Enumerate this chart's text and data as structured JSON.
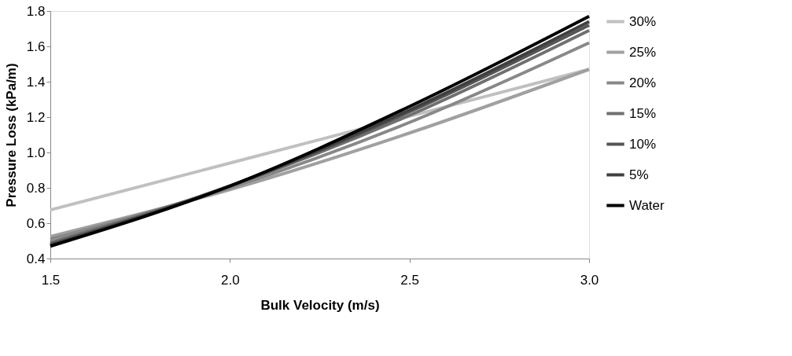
{
  "chart_data": {
    "type": "line",
    "xlabel": "Bulk Velocity (m/s)",
    "ylabel": "Pressure Loss (kPa/m)",
    "x": [
      1.5,
      2.0,
      2.5,
      3.0
    ],
    "series": [
      {
        "name": "30%",
        "color": "#c0c0c0",
        "values": [
          0.675,
          0.94,
          1.205,
          1.47
        ]
      },
      {
        "name": "25%",
        "color": "#a0a0a0",
        "values": [
          0.525,
          0.79,
          1.11,
          1.47
        ]
      },
      {
        "name": "20%",
        "color": "#888888",
        "values": [
          0.51,
          0.8,
          1.17,
          1.62
        ]
      },
      {
        "name": "15%",
        "color": "#707070",
        "values": [
          0.49,
          0.81,
          1.21,
          1.69
        ]
      },
      {
        "name": "10%",
        "color": "#555555",
        "values": [
          0.48,
          0.81,
          1.23,
          1.72
        ]
      },
      {
        "name": "5%",
        "color": "#404040",
        "values": [
          0.475,
          0.81,
          1.24,
          1.74
        ]
      },
      {
        "name": "Water",
        "color": "#000000",
        "values": [
          0.47,
          0.81,
          1.26,
          1.77
        ]
      }
    ],
    "xlim": [
      1.5,
      3.0
    ],
    "xticks": [
      {
        "value": 1.5,
        "label": "1.5"
      },
      {
        "value": 2.0,
        "label": "2.0"
      },
      {
        "value": 2.5,
        "label": "2.5"
      },
      {
        "value": 3.0,
        "label": "3.0"
      }
    ],
    "ylim": [
      0.4,
      1.8
    ],
    "yticks": [
      {
        "value": 0.4,
        "label": "0.4"
      },
      {
        "value": 0.6,
        "label": "0.6"
      },
      {
        "value": 0.8,
        "label": "0.8"
      },
      {
        "value": 1.0,
        "label": "1.0"
      },
      {
        "value": 1.2,
        "label": "1.2"
      },
      {
        "value": 1.4,
        "label": "1.4"
      },
      {
        "value": 1.6,
        "label": "1.6"
      },
      {
        "value": 1.8,
        "label": "1.8"
      }
    ],
    "grid": false,
    "legend": "right",
    "marker": "none",
    "line_style": "solid"
  }
}
